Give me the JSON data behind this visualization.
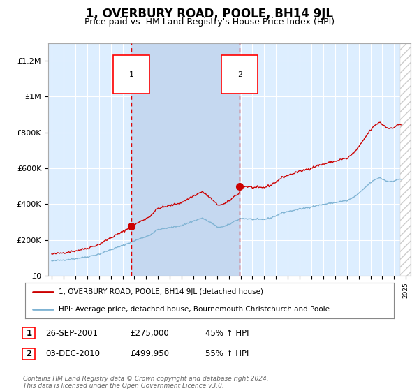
{
  "title": "1, OVERBURY ROAD, POOLE, BH14 9JL",
  "subtitle": "Price paid vs. HM Land Registry's House Price Index (HPI)",
  "title_fontsize": 12,
  "subtitle_fontsize": 9,
  "background_color": "#ffffff",
  "plot_bg_color": "#ddeeff",
  "grid_color": "#ffffff",
  "ylim": [
    0,
    1300000
  ],
  "yticks": [
    0,
    200000,
    400000,
    600000,
    800000,
    1000000,
    1200000
  ],
  "ytick_labels": [
    "£0",
    "£200K",
    "£400K",
    "£600K",
    "£800K",
    "£1M",
    "£1.2M"
  ],
  "xlim_start": 1994.7,
  "xlim_end": 2025.4,
  "sale1_x": 2001.74,
  "sale1_y": 275000,
  "sale2_x": 2010.92,
  "sale2_y": 499950,
  "shade_color": "#c5d8f0",
  "dashed_line_color": "#dd0000",
  "house_line_color": "#cc0000",
  "hpi_line_color": "#7fb3d3",
  "legend_house": "1, OVERBURY ROAD, POOLE, BH14 9JL (detached house)",
  "legend_hpi": "HPI: Average price, detached house, Bournemouth Christchurch and Poole",
  "table_rows": [
    {
      "num": "1",
      "date": "26-SEP-2001",
      "price": "£275,000",
      "hpi": "45% ↑ HPI"
    },
    {
      "num": "2",
      "date": "03-DEC-2010",
      "price": "£499,950",
      "hpi": "55% ↑ HPI"
    }
  ],
  "footnote": "Contains HM Land Registry data © Crown copyright and database right 2024.\nThis data is licensed under the Open Government Licence v3.0."
}
